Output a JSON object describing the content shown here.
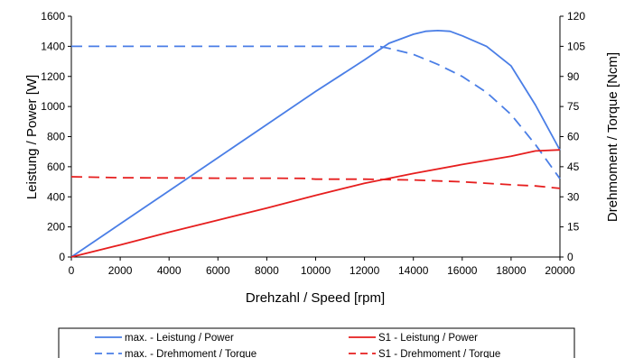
{
  "chart_data": {
    "type": "line",
    "title": "",
    "xlabel": "Drehzahl / Speed [rpm]",
    "ylabel_left": "Leistung / Power [W]",
    "ylabel_right": "Drehmoment / Torque [Ncm]",
    "xlim": [
      0,
      20000
    ],
    "ylim_left": [
      0,
      1600
    ],
    "ylim_right": [
      0,
      120
    ],
    "x_ticks": [
      "0",
      "2000",
      "4000",
      "6000",
      "8000",
      "10000",
      "12000",
      "14000",
      "16000",
      "18000",
      "20000"
    ],
    "y_left_ticks": [
      "0",
      "200",
      "400",
      "600",
      "800",
      "1000",
      "1200",
      "1400",
      "1600"
    ],
    "y_right_ticks": [
      "0",
      "15",
      "30",
      "45",
      "60",
      "75",
      "90",
      "105",
      "120"
    ],
    "grid": false,
    "legend_position": "bottom",
    "series": [
      {
        "name": "max. - Leistung / Power",
        "axis": "left",
        "color": "#4a7ee6",
        "dash": "solid",
        "x": [
          0,
          2000,
          4000,
          6000,
          8000,
          10000,
          12000,
          13000,
          14000,
          14500,
          15000,
          15500,
          16000,
          17000,
          18000,
          19000,
          20000
        ],
        "y": [
          0,
          220,
          440,
          660,
          880,
          1100,
          1310,
          1420,
          1480,
          1500,
          1505,
          1500,
          1470,
          1400,
          1270,
          1010,
          710
        ]
      },
      {
        "name": "max. - Drehmoment / Torque",
        "axis": "right",
        "color": "#4a7ee6",
        "dash": "dashed",
        "x": [
          0,
          2000,
          4000,
          6000,
          8000,
          10000,
          12000,
          12600,
          13000,
          14000,
          15000,
          16000,
          17000,
          18000,
          19000,
          20000
        ],
        "y": [
          105,
          105,
          105,
          105,
          105,
          105,
          105,
          105,
          104,
          101,
          96,
          90,
          82,
          71,
          56,
          39
        ]
      },
      {
        "name": "S1 - Leistung / Power",
        "axis": "left",
        "color": "#e61e1e",
        "dash": "solid",
        "x": [
          0,
          2000,
          4000,
          6000,
          8000,
          10000,
          12000,
          14000,
          16000,
          18000,
          19000,
          20000
        ],
        "y": [
          0,
          80,
          165,
          245,
          325,
          410,
          490,
          555,
          615,
          670,
          705,
          712
        ]
      },
      {
        "name": "S1 - Drehmoment / Torque",
        "axis": "right",
        "color": "#e61e1e",
        "dash": "dashed",
        "x": [
          0,
          2000,
          4000,
          6000,
          8000,
          9500,
          10000,
          12000,
          14000,
          16000,
          18000,
          19000,
          20000
        ],
        "y": [
          40,
          39.5,
          39.4,
          39.3,
          39.3,
          39.2,
          38.8,
          38.8,
          38.4,
          37.5,
          36,
          35.4,
          34.2
        ]
      }
    ]
  }
}
